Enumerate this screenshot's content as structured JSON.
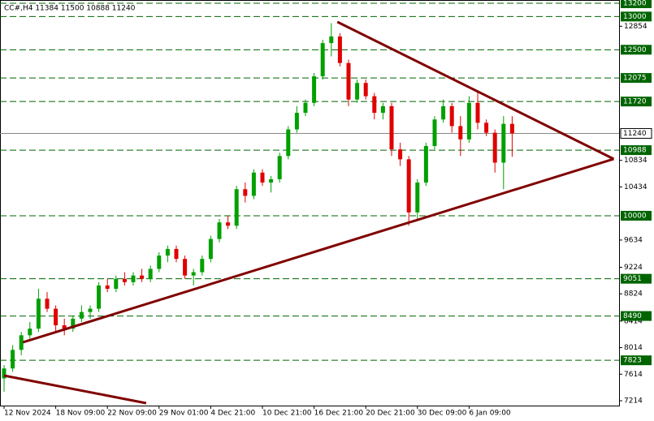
{
  "chart_data": {
    "type": "candlestick",
    "title": "CC#,H4  11384 11500 10888 11240",
    "categories": [
      "12 Nov 2024",
      null,
      null,
      null,
      null,
      null,
      "18 Nov 09:00",
      null,
      null,
      null,
      null,
      null,
      "22 Nov 09:00",
      null,
      null,
      null,
      null,
      null,
      "29 Nov 01:00",
      null,
      null,
      null,
      null,
      null,
      "4 Dec 21:00",
      null,
      null,
      null,
      null,
      null,
      "10 Dec 21:00",
      null,
      null,
      null,
      null,
      null,
      "16 Dec 21:00",
      null,
      null,
      null,
      null,
      null,
      "20 Dec 21:00",
      null,
      null,
      null,
      null,
      null,
      "30 Dec 09:00",
      null,
      null,
      null,
      null,
      null,
      "6 Jan 09:00",
      null,
      null,
      null,
      null,
      null
    ],
    "open": [
      7550,
      7700,
      7980,
      8200,
      8300,
      8750,
      8600,
      8350,
      8300,
      8450,
      8550,
      8600,
      8950,
      8900,
      9050,
      9000,
      9100,
      9050,
      9200,
      9400,
      9500,
      9350,
      9100,
      9150,
      9350,
      9650,
      9900,
      9850,
      10400,
      10300,
      10650,
      10500,
      10550,
      10900,
      11300,
      11550,
      11700,
      12100,
      12600,
      12700,
      12300,
      11750,
      12000,
      11800,
      11550,
      11650,
      11000,
      10850,
      10050,
      10500,
      11050,
      11450,
      11650,
      11350,
      11150,
      11700,
      11400,
      11250,
      10800,
      11384
    ],
    "high": [
      7750,
      8050,
      8250,
      8400,
      8900,
      8850,
      8650,
      8450,
      8500,
      8650,
      8650,
      9000,
      9050,
      9100,
      9150,
      9150,
      9200,
      9250,
      9450,
      9550,
      9550,
      9400,
      9200,
      9400,
      9700,
      9950,
      10000,
      10450,
      10500,
      10700,
      10700,
      10600,
      10950,
      11350,
      11650,
      11750,
      12150,
      12650,
      12900,
      12750,
      12350,
      12050,
      12050,
      11850,
      11700,
      11700,
      11100,
      10900,
      10550,
      11100,
      11500,
      11750,
      11700,
      11500,
      11800,
      11850,
      11450,
      11300,
      11500,
      11500
    ],
    "low": [
      7350,
      7650,
      7900,
      8150,
      8250,
      8550,
      8250,
      8200,
      8250,
      8400,
      8450,
      8550,
      8850,
      8850,
      8950,
      8950,
      9000,
      9000,
      9150,
      9300,
      9300,
      9050,
      8950,
      9100,
      9300,
      9600,
      9800,
      9800,
      10200,
      10250,
      10450,
      10350,
      10500,
      10850,
      11250,
      11500,
      11650,
      12050,
      12400,
      12250,
      11650,
      11700,
      11750,
      11450,
      11450,
      10900,
      10750,
      9850,
      9950,
      10450,
      11000,
      11400,
      11250,
      10900,
      11100,
      11300,
      11200,
      10650,
      10400,
      10888
    ],
    "close": [
      7700,
      7980,
      8200,
      8300,
      8750,
      8600,
      8350,
      8300,
      8450,
      8550,
      8600,
      8950,
      8900,
      9050,
      9000,
      9100,
      9050,
      9200,
      9400,
      9500,
      9350,
      9100,
      9150,
      9350,
      9650,
      9900,
      9850,
      10400,
      10300,
      10650,
      10500,
      10550,
      10900,
      11300,
      11550,
      11700,
      12100,
      12600,
      12700,
      12300,
      11750,
      12000,
      11800,
      11550,
      11650,
      11000,
      10850,
      10050,
      10500,
      11050,
      11450,
      11650,
      11350,
      11150,
      11700,
      11400,
      11250,
      10800,
      11384,
      11240
    ],
    "up_color": "#00a000",
    "down_color": "#e00000",
    "ylim": [
      7141,
      13249
    ],
    "yticks": [
      12854,
      10834,
      10434,
      9634,
      9224,
      8824,
      8414,
      8014,
      7614,
      7214
    ],
    "levels": [
      13200,
      13000,
      12500,
      12075,
      11720,
      10988,
      10000,
      9051,
      8490,
      7823
    ],
    "level_color": "#006400",
    "last_price": 11240,
    "trendlines": [
      {
        "x": [
          38.7,
          70.8
        ],
        "y": [
          12919,
          10855
        ],
        "color": "#800000"
      },
      {
        "x": [
          2.2,
          70.8
        ],
        "y": [
          8094,
          10855
        ],
        "color": "#800000"
      },
      {
        "x": [
          0,
          16.5
        ],
        "y": [
          7593,
          7178
        ],
        "color": "#800000"
      }
    ]
  }
}
